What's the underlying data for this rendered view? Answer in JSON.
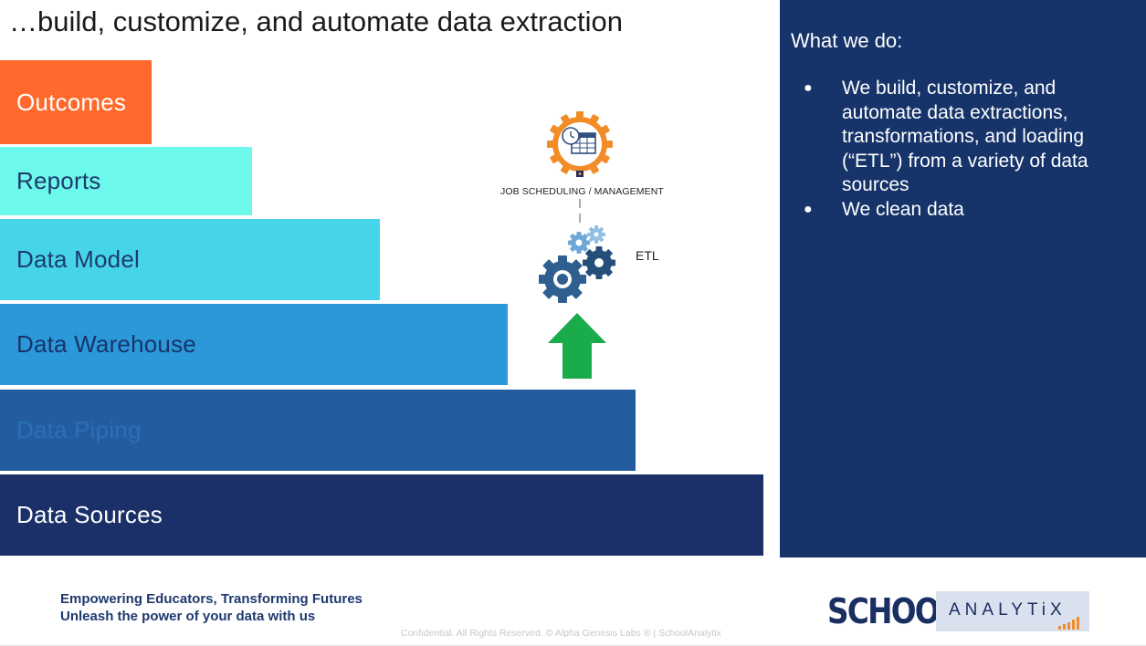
{
  "title": "…build, customize, and automate data extraction",
  "pyramid": [
    {
      "label": "Outcomes",
      "color": "#ff6a2c",
      "text_color": "#ffffff"
    },
    {
      "label": "Reports",
      "color": "#6cf8ea",
      "text_color": "#1e3a6e"
    },
    {
      "label": "Data Model",
      "color": "#46d5e8",
      "text_color": "#1e3a6e"
    },
    {
      "label": "Data Warehouse",
      "color": "#2b98da",
      "text_color": "#17346a"
    },
    {
      "label": "Data Piping",
      "color": "#245d9f",
      "text_color": "#2a70b5"
    },
    {
      "label": "Data Sources",
      "color": "#1b2f68",
      "text_color": "#ffffff"
    }
  ],
  "diagram": {
    "job_label": "JOB SCHEDULING / MANAGEMENT",
    "etl_label": "ETL",
    "icons": [
      "calendar-clock-gear-icon",
      "gears-icon",
      "up-arrow-icon"
    ]
  },
  "panel": {
    "heading": "What we do:",
    "items": [
      "We build, customize, and automate data extractions, transformations, and loading (“ETL”) from a variety of data sources",
      "We clean data"
    ],
    "bullet": "●"
  },
  "footer": {
    "tagline_1": "Empowering Educators, Transforming Futures",
    "tagline_2": "Unleash the power of your data with us",
    "confidential": "Confidential. All Rights Reserved. © Alpha Genesis Labs ® | SchoolAnalytix"
  },
  "logo": {
    "word_1": "SCHOOL",
    "word_2": "ANALYTiX"
  },
  "colors": {
    "panel_bg": "#17346a",
    "gear_orange": "#f28c28",
    "gear_blue": "#2f5f8f",
    "gear_light": "#6fa8d6",
    "arrow_green": "#1aab4b"
  }
}
